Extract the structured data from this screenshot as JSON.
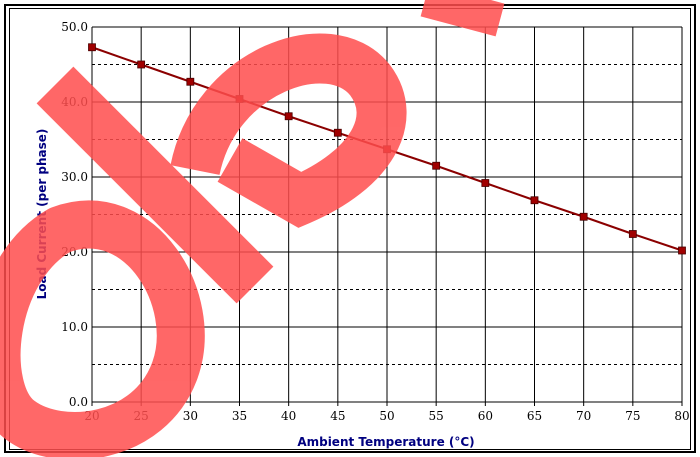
{
  "chart_data": {
    "type": "line",
    "title": "",
    "xlabel": "Ambient Temperature (°C)",
    "ylabel": "Load Current (per phase)",
    "xlim": [
      20,
      80
    ],
    "ylim": [
      0,
      50
    ],
    "x_ticks": [
      20,
      25,
      30,
      35,
      40,
      45,
      50,
      55,
      60,
      65,
      70,
      75,
      80
    ],
    "y_ticks": [
      "0.0",
      "10.0",
      "20.0",
      "30.0",
      "40.0",
      "50.0"
    ],
    "y_major_step": 10,
    "y_minor_step": 5,
    "grid": true,
    "legend": "none",
    "series": [
      {
        "x": [
          20,
          25,
          30,
          35,
          40,
          45,
          50,
          55,
          60,
          65,
          70,
          75,
          80
        ],
        "values": [
          47.3,
          45.0,
          42.7,
          40.4,
          38.1,
          35.9,
          33.7,
          31.5,
          29.2,
          26.9,
          24.7,
          22.4,
          20.2
        ],
        "color": "#8b0000",
        "marker_color": "#a00000"
      }
    ]
  },
  "watermark": {
    "text": "Ole",
    "color": "#ff4d4d"
  }
}
